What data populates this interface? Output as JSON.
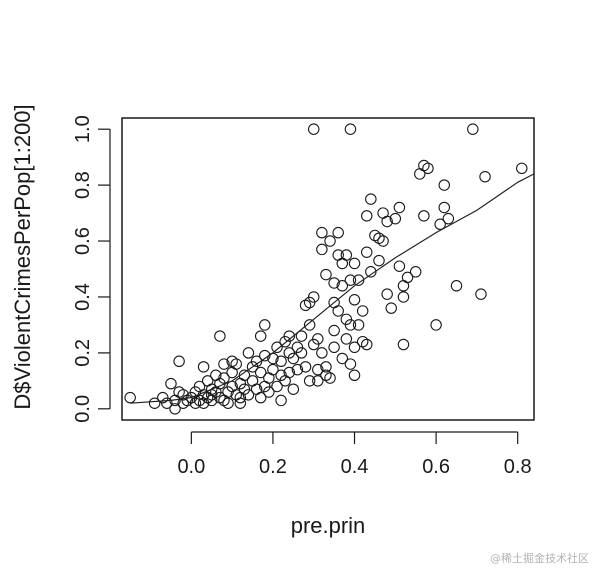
{
  "chart_data": {
    "type": "scatter",
    "xlabel": "pre.prin",
    "ylabel": "D$ViolentCrimesPerPop[1:200]",
    "xlim": [
      -0.17,
      0.84
    ],
    "ylim": [
      -0.04,
      1.04
    ],
    "xticks": [
      0.0,
      0.2,
      0.4,
      0.6,
      0.8
    ],
    "yticks": [
      0.0,
      0.2,
      0.4,
      0.6,
      0.8,
      1.0
    ],
    "xtick_labels": [
      "0.0",
      "0.2",
      "0.4",
      "0.6",
      "0.8"
    ],
    "ytick_labels": [
      "0.0",
      "0.2",
      "0.4",
      "0.6",
      "0.8",
      "1.0"
    ],
    "marker": "open-circle",
    "box": true,
    "grid": false,
    "points": [
      [
        -0.15,
        0.04
      ],
      [
        -0.09,
        0.02
      ],
      [
        -0.07,
        0.04
      ],
      [
        -0.06,
        0.02
      ],
      [
        -0.05,
        0.09
      ],
      [
        -0.04,
        0.03
      ],
      [
        -0.04,
        0.0
      ],
      [
        -0.03,
        0.06
      ],
      [
        -0.03,
        0.17
      ],
      [
        -0.02,
        0.02
      ],
      [
        -0.02,
        0.05
      ],
      [
        -0.01,
        0.03
      ],
      [
        0.0,
        0.04
      ],
      [
        0.01,
        0.02
      ],
      [
        0.01,
        0.06
      ],
      [
        0.02,
        0.03
      ],
      [
        0.02,
        0.08
      ],
      [
        0.03,
        0.05
      ],
      [
        0.03,
        0.02
      ],
      [
        0.03,
        0.15
      ],
      [
        0.04,
        0.04
      ],
      [
        0.04,
        0.1
      ],
      [
        0.05,
        0.03
      ],
      [
        0.05,
        0.07
      ],
      [
        0.05,
        0.05
      ],
      [
        0.06,
        0.06
      ],
      [
        0.06,
        0.12
      ],
      [
        0.07,
        0.04
      ],
      [
        0.07,
        0.09
      ],
      [
        0.07,
        0.26
      ],
      [
        0.08,
        0.03
      ],
      [
        0.08,
        0.16
      ],
      [
        0.08,
        0.11
      ],
      [
        0.09,
        0.02
      ],
      [
        0.09,
        0.06
      ],
      [
        0.1,
        0.08
      ],
      [
        0.1,
        0.13
      ],
      [
        0.1,
        0.17
      ],
      [
        0.11,
        0.05
      ],
      [
        0.11,
        0.16
      ],
      [
        0.12,
        0.04
      ],
      [
        0.12,
        0.09
      ],
      [
        0.12,
        0.02
      ],
      [
        0.13,
        0.07
      ],
      [
        0.13,
        0.12
      ],
      [
        0.14,
        0.2
      ],
      [
        0.14,
        0.05
      ],
      [
        0.15,
        0.1
      ],
      [
        0.15,
        0.15
      ],
      [
        0.16,
        0.17
      ],
      [
        0.16,
        0.07
      ],
      [
        0.17,
        0.13
      ],
      [
        0.17,
        0.04
      ],
      [
        0.17,
        0.26
      ],
      [
        0.18,
        0.08
      ],
      [
        0.18,
        0.3
      ],
      [
        0.18,
        0.19
      ],
      [
        0.19,
        0.06
      ],
      [
        0.19,
        0.11
      ],
      [
        0.2,
        0.14
      ],
      [
        0.2,
        0.18
      ],
      [
        0.21,
        0.08
      ],
      [
        0.21,
        0.22
      ],
      [
        0.22,
        0.12
      ],
      [
        0.22,
        0.03
      ],
      [
        0.22,
        0.17
      ],
      [
        0.23,
        0.24
      ],
      [
        0.23,
        0.1
      ],
      [
        0.24,
        0.2
      ],
      [
        0.24,
        0.26
      ],
      [
        0.24,
        0.13
      ],
      [
        0.25,
        0.18
      ],
      [
        0.25,
        0.07
      ],
      [
        0.26,
        0.22
      ],
      [
        0.26,
        0.14
      ],
      [
        0.27,
        0.26
      ],
      [
        0.27,
        0.2
      ],
      [
        0.28,
        0.15
      ],
      [
        0.28,
        0.37
      ],
      [
        0.29,
        0.1
      ],
      [
        0.29,
        0.3
      ],
      [
        0.29,
        0.38
      ],
      [
        0.3,
        1.0
      ],
      [
        0.3,
        0.23
      ],
      [
        0.3,
        0.4
      ],
      [
        0.31,
        0.14
      ],
      [
        0.31,
        0.25
      ],
      [
        0.31,
        0.1
      ],
      [
        0.32,
        0.63
      ],
      [
        0.32,
        0.57
      ],
      [
        0.32,
        0.2
      ],
      [
        0.33,
        0.48
      ],
      [
        0.33,
        0.15
      ],
      [
        0.33,
        0.12
      ],
      [
        0.34,
        0.11
      ],
      [
        0.34,
        0.6
      ],
      [
        0.35,
        0.45
      ],
      [
        0.35,
        0.38
      ],
      [
        0.35,
        0.28
      ],
      [
        0.35,
        0.22
      ],
      [
        0.36,
        0.63
      ],
      [
        0.36,
        0.55
      ],
      [
        0.36,
        0.35
      ],
      [
        0.37,
        0.52
      ],
      [
        0.37,
        0.44
      ],
      [
        0.37,
        0.18
      ],
      [
        0.38,
        0.55
      ],
      [
        0.38,
        0.32
      ],
      [
        0.38,
        0.25
      ],
      [
        0.39,
        1.0
      ],
      [
        0.39,
        0.46
      ],
      [
        0.39,
        0.3
      ],
      [
        0.39,
        0.16
      ],
      [
        0.4,
        0.52
      ],
      [
        0.4,
        0.39
      ],
      [
        0.4,
        0.22
      ],
      [
        0.4,
        0.12
      ],
      [
        0.41,
        0.46
      ],
      [
        0.41,
        0.3
      ],
      [
        0.42,
        0.35
      ],
      [
        0.42,
        0.24
      ],
      [
        0.43,
        0.69
      ],
      [
        0.43,
        0.56
      ],
      [
        0.43,
        0.23
      ],
      [
        0.44,
        0.75
      ],
      [
        0.44,
        0.49
      ],
      [
        0.45,
        0.62
      ],
      [
        0.46,
        0.61
      ],
      [
        0.46,
        0.53
      ],
      [
        0.47,
        0.7
      ],
      [
        0.47,
        0.6
      ],
      [
        0.48,
        0.67
      ],
      [
        0.48,
        0.41
      ],
      [
        0.49,
        0.36
      ],
      [
        0.5,
        0.68
      ],
      [
        0.51,
        0.72
      ],
      [
        0.51,
        0.51
      ],
      [
        0.52,
        0.44
      ],
      [
        0.52,
        0.4
      ],
      [
        0.52,
        0.23
      ],
      [
        0.53,
        0.47
      ],
      [
        0.55,
        0.49
      ],
      [
        0.56,
        0.84
      ],
      [
        0.57,
        0.87
      ],
      [
        0.57,
        0.69
      ],
      [
        0.58,
        0.86
      ],
      [
        0.6,
        0.3
      ],
      [
        0.61,
        0.66
      ],
      [
        0.62,
        0.8
      ],
      [
        0.62,
        0.72
      ],
      [
        0.63,
        0.68
      ],
      [
        0.65,
        0.44
      ],
      [
        0.69,
        1.0
      ],
      [
        0.71,
        0.41
      ],
      [
        0.72,
        0.83
      ],
      [
        0.81,
        0.86
      ]
    ],
    "trend_line": {
      "style": "smooth-curve",
      "points": [
        [
          -0.15,
          0.02
        ],
        [
          -0.05,
          0.03
        ],
        [
          0.0,
          0.04
        ],
        [
          0.1,
          0.1
        ],
        [
          0.2,
          0.2
        ],
        [
          0.3,
          0.32
        ],
        [
          0.4,
          0.44
        ],
        [
          0.5,
          0.54
        ],
        [
          0.6,
          0.63
        ],
        [
          0.7,
          0.71
        ],
        [
          0.8,
          0.81
        ],
        [
          0.84,
          0.84
        ]
      ]
    }
  },
  "watermark": "@稀土掘金技术社区"
}
